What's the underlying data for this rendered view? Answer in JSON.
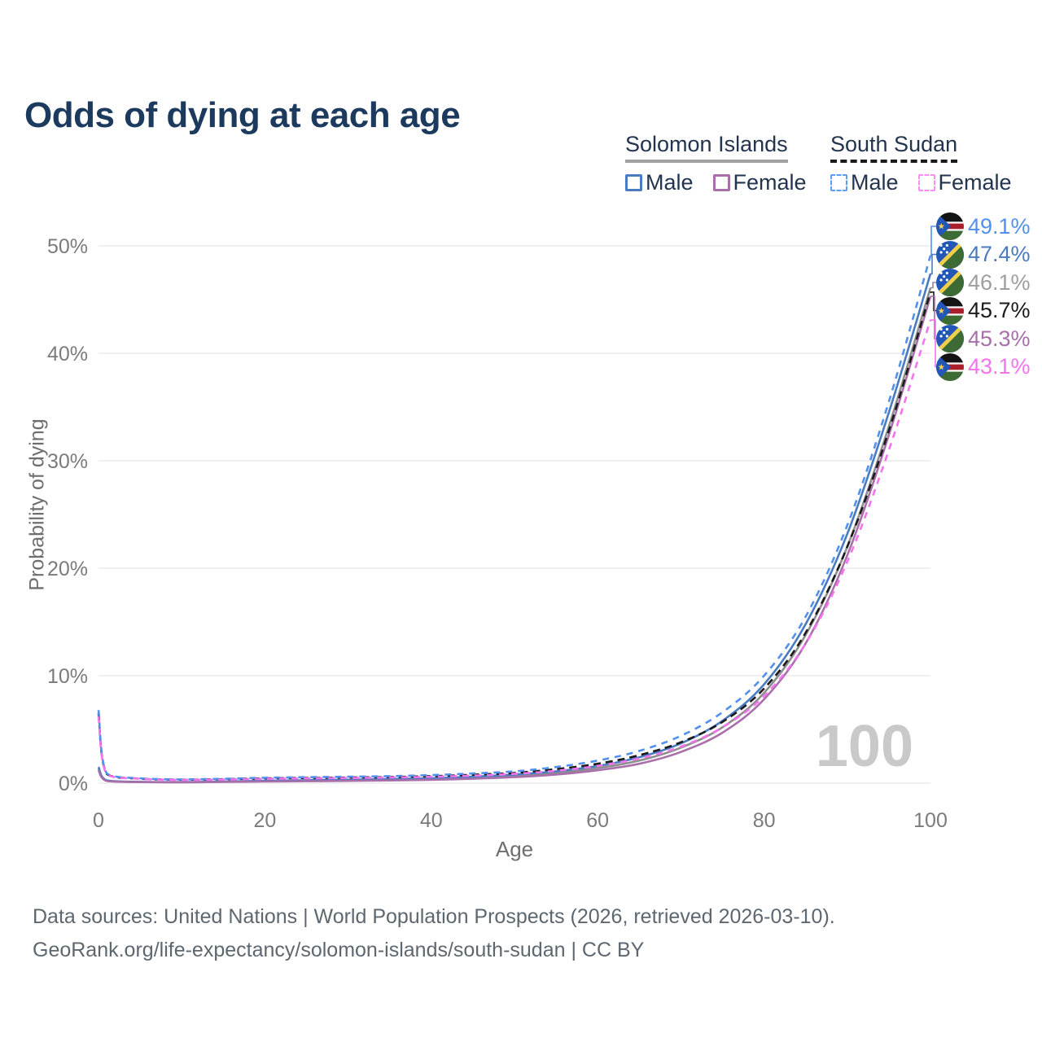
{
  "title": "Odds of dying at each age",
  "legend": {
    "groups": [
      {
        "label": "Solomon Islands",
        "line_style": "solid",
        "line_color": "#a0a0a0",
        "items": [
          {
            "label": "Male",
            "color": "#4a7bc0",
            "style": "solid"
          },
          {
            "label": "Female",
            "color": "#a96fab",
            "style": "solid"
          }
        ]
      },
      {
        "label": "South Sudan",
        "line_style": "dashed",
        "line_color": "#1b1b1b",
        "items": [
          {
            "label": "Male",
            "color": "#5a9cf8",
            "style": "dashed"
          },
          {
            "label": "Female",
            "color": "#fb8df5",
            "style": "dashed"
          }
        ]
      }
    ]
  },
  "chart_data": {
    "type": "line",
    "title": "Odds of dying at each age",
    "xlabel": "Age",
    "ylabel": "Probability of dying",
    "xlim": [
      0,
      100
    ],
    "ylim": [
      0,
      50
    ],
    "x_ticks": [
      0,
      20,
      40,
      60,
      80,
      100
    ],
    "y_ticks": [
      "0%",
      "10%",
      "20%",
      "30%",
      "40%",
      "50%"
    ],
    "grid": "horizontal",
    "legend_position": "top-right",
    "watermark": "100",
    "x": [
      0,
      1,
      5,
      10,
      15,
      20,
      25,
      30,
      35,
      40,
      45,
      50,
      55,
      60,
      65,
      70,
      75,
      80,
      85,
      90,
      95,
      100
    ],
    "series": [
      {
        "name": "Solomon Islands",
        "country": "Solomon Islands",
        "sex": "both",
        "flag": "solomon-islands",
        "color": "#8e8e8e",
        "label_color": "#9e9e9e",
        "dash": "",
        "end_label": "46.1%",
        "values": [
          1.35,
          0.22,
          0.11,
          0.09,
          0.13,
          0.18,
          0.22,
          0.26,
          0.31,
          0.38,
          0.5,
          0.68,
          0.95,
          1.4,
          2.1,
          3.3,
          5.2,
          8.4,
          13.8,
          22.0,
          33.2,
          46.1
        ]
      },
      {
        "name": "Solomon Islands Male",
        "country": "Solomon Islands",
        "sex": "Male",
        "flag": "solomon-islands",
        "color": "#4a7bc0",
        "label_color": "#4a7bc0",
        "dash": "",
        "end_label": "47.4%",
        "values": [
          1.5,
          0.25,
          0.12,
          0.1,
          0.15,
          0.22,
          0.27,
          0.32,
          0.38,
          0.45,
          0.6,
          0.8,
          1.1,
          1.6,
          2.4,
          3.7,
          5.8,
          9.2,
          14.8,
          23.2,
          34.5,
          47.4
        ]
      },
      {
        "name": "Solomon Islands Female",
        "country": "Solomon Islands",
        "sex": "Female",
        "flag": "solomon-islands",
        "color": "#a96fab",
        "label_color": "#a96fab",
        "dash": "",
        "end_label": "45.3%",
        "values": [
          1.2,
          0.2,
          0.1,
          0.08,
          0.11,
          0.15,
          0.18,
          0.21,
          0.25,
          0.31,
          0.41,
          0.56,
          0.8,
          1.2,
          1.8,
          2.9,
          4.7,
          7.8,
          13.0,
          21.2,
          32.4,
          45.3
        ]
      },
      {
        "name": "South Sudan",
        "country": "South Sudan",
        "sex": "both",
        "flag": "south-sudan",
        "color": "#1b1b1b",
        "label_color": "#1b1b1b",
        "dash": "9 6",
        "end_label": "45.7%",
        "values": [
          6.5,
          0.85,
          0.42,
          0.32,
          0.36,
          0.44,
          0.48,
          0.52,
          0.57,
          0.65,
          0.78,
          0.95,
          1.3,
          1.8,
          2.6,
          3.8,
          5.7,
          8.8,
          14.0,
          22.0,
          32.8,
          45.7
        ]
      },
      {
        "name": "South Sudan Male",
        "country": "South Sudan",
        "sex": "Male",
        "flag": "south-sudan",
        "color": "#5290ee",
        "label_color": "#5290ee",
        "dash": "8 7",
        "end_label": "49.1%",
        "values": [
          6.8,
          0.9,
          0.45,
          0.35,
          0.4,
          0.5,
          0.55,
          0.6,
          0.65,
          0.75,
          0.9,
          1.1,
          1.5,
          2.1,
          3.0,
          4.4,
          6.6,
          10.0,
          15.5,
          24.0,
          35.5,
          49.1
        ]
      },
      {
        "name": "South Sudan Female",
        "country": "South Sudan",
        "sex": "Female",
        "flag": "south-sudan",
        "color": "#f573ee",
        "label_color": "#f573ee",
        "dash": "8 7",
        "end_label": "43.1%",
        "values": [
          6.2,
          0.8,
          0.4,
          0.3,
          0.33,
          0.4,
          0.44,
          0.48,
          0.52,
          0.59,
          0.7,
          0.86,
          1.15,
          1.6,
          2.3,
          3.4,
          5.2,
          8.1,
          13.0,
          20.6,
          31.0,
          43.1
        ]
      }
    ]
  },
  "footer": {
    "line1": "Data sources: United Nations | World Population Prospects (2026, retrieved 2026-03-10).",
    "line2": "GeoRank.org/life-expectancy/solomon-islands/south-sudan | CC BY"
  }
}
